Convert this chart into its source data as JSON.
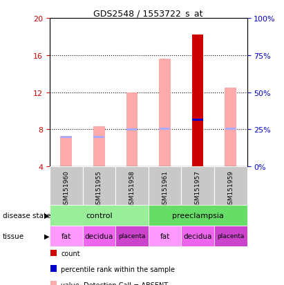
{
  "title": "GDS2548 / 1553722_s_at",
  "samples": [
    "GSM151960",
    "GSM151955",
    "GSM151958",
    "GSM151961",
    "GSM151957",
    "GSM151959"
  ],
  "ylim_left": [
    4,
    20
  ],
  "ylim_right": [
    0,
    100
  ],
  "yticks_left": [
    4,
    8,
    12,
    16,
    20
  ],
  "yticks_right": [
    0,
    25,
    50,
    75,
    100
  ],
  "count_values": [
    null,
    null,
    null,
    null,
    18.2,
    null
  ],
  "percentile_values": [
    null,
    null,
    null,
    null,
    9.0,
    null
  ],
  "value_absent": [
    7.3,
    8.3,
    12.0,
    15.6,
    null,
    12.5
  ],
  "rank_absent": [
    7.2,
    7.2,
    8.0,
    8.1,
    null,
    8.1
  ],
  "bar_width": 0.35,
  "disease_state": [
    "control",
    "control",
    "control",
    "preeclampsia",
    "preeclampsia",
    "preeclampsia"
  ],
  "tissue": [
    "fat",
    "decidua",
    "placenta",
    "fat",
    "decidua",
    "placenta"
  ],
  "color_count": "#cc0000",
  "color_percentile": "#0000cc",
  "color_value_absent": "#ffaaaa",
  "color_rank_absent": "#aaaaff",
  "color_control": "#99ee99",
  "color_preeclampsia": "#66dd66",
  "color_fat": "#ff99ff",
  "color_decidua": "#ee66ee",
  "color_placenta": "#cc44cc",
  "color_gray": "#c8c8c8",
  "left_ycolor": "#cc0000",
  "right_ycolor": "#0000cc"
}
